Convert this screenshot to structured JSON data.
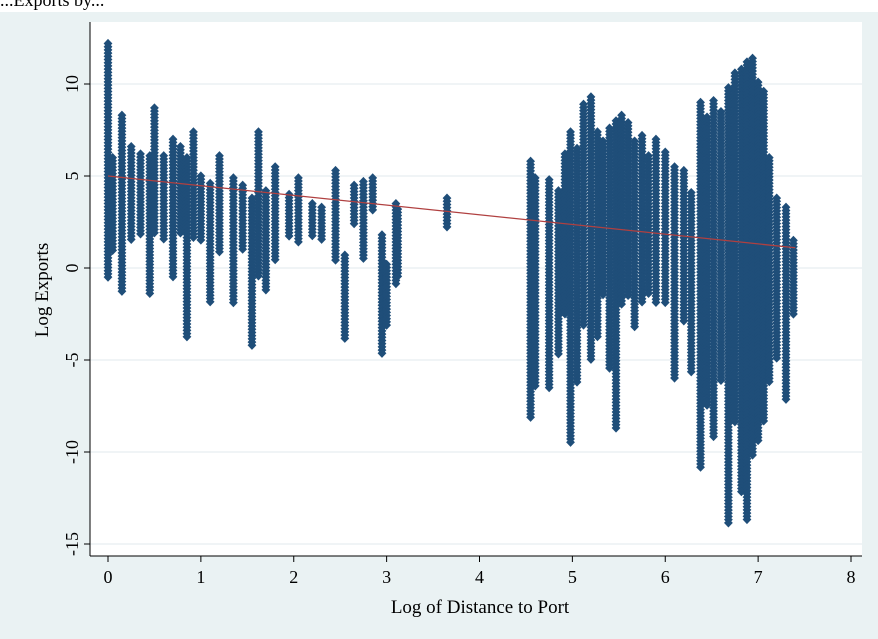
{
  "caption": "...Exports by...",
  "chart_data": {
    "type": "scatter",
    "xlabel": "Log of Distance to Port",
    "ylabel": "Log Exports",
    "xlim": [
      -0.1,
      8.2
    ],
    "ylim": [
      -15.5,
      12.6
    ],
    "x_ticks": [
      0,
      1,
      2,
      3,
      4,
      5,
      6,
      7,
      8
    ],
    "y_ticks": [
      -15,
      -10,
      -5,
      0,
      5,
      10
    ],
    "grid": "horizontal",
    "marker": "diamond",
    "colors": {
      "points": "#1f4e79",
      "fit_line": "#b04040",
      "plot_bg": "#ffffff",
      "frame_bg": "#eaf2f3",
      "grid": "#e8eef0"
    },
    "fit_line": {
      "x": [
        0,
        7.4
      ],
      "y": [
        5.0,
        1.1
      ]
    },
    "clusters": [
      {
        "x": 0.0,
        "y": [
          -0.5,
          12.2
        ]
      },
      {
        "x": 0.05,
        "y": [
          0.8,
          6.0
        ]
      },
      {
        "x": 0.15,
        "y": [
          -1.4,
          8.3
        ]
      },
      {
        "x": 0.25,
        "y": [
          1.5,
          6.6
        ]
      },
      {
        "x": 0.35,
        "y": [
          1.8,
          6.2
        ]
      },
      {
        "x": 0.45,
        "y": [
          -1.5,
          6.1
        ]
      },
      {
        "x": 0.5,
        "y": [
          1.8,
          8.7
        ]
      },
      {
        "x": 0.6,
        "y": [
          1.5,
          6.1
        ]
      },
      {
        "x": 0.7,
        "y": [
          -0.5,
          7.0
        ]
      },
      {
        "x": 0.78,
        "y": [
          1.8,
          6.6
        ]
      },
      {
        "x": 0.85,
        "y": [
          -3.9,
          6.0
        ]
      },
      {
        "x": 0.92,
        "y": [
          1.6,
          7.4
        ]
      },
      {
        "x": 1.0,
        "y": [
          1.5,
          5.0
        ]
      },
      {
        "x": 1.1,
        "y": [
          -1.9,
          4.6
        ]
      },
      {
        "x": 1.2,
        "y": [
          0.8,
          6.1
        ]
      },
      {
        "x": 1.35,
        "y": [
          -1.9,
          4.9
        ]
      },
      {
        "x": 1.45,
        "y": [
          1.0,
          4.5
        ]
      },
      {
        "x": 1.55,
        "y": [
          -4.3,
          3.8
        ]
      },
      {
        "x": 1.62,
        "y": [
          -0.5,
          7.4
        ]
      },
      {
        "x": 1.7,
        "y": [
          -1.2,
          4.2
        ]
      },
      {
        "x": 1.8,
        "y": [
          0.3,
          5.5
        ]
      },
      {
        "x": 1.95,
        "y": [
          1.7,
          4.0
        ]
      },
      {
        "x": 2.05,
        "y": [
          1.3,
          4.9
        ]
      },
      {
        "x": 2.2,
        "y": [
          1.7,
          3.5
        ]
      },
      {
        "x": 2.3,
        "y": [
          1.5,
          3.3
        ]
      },
      {
        "x": 2.45,
        "y": [
          0.3,
          5.3
        ]
      },
      {
        "x": 2.55,
        "y": [
          -3.9,
          0.7
        ]
      },
      {
        "x": 2.65,
        "y": [
          2.3,
          4.5
        ]
      },
      {
        "x": 2.75,
        "y": [
          0.5,
          4.7
        ]
      },
      {
        "x": 2.85,
        "y": [
          3.0,
          4.9
        ]
      },
      {
        "x": 2.95,
        "y": [
          -4.7,
          1.8
        ]
      },
      {
        "x": 3.0,
        "y": [
          -3.2,
          0.2
        ]
      },
      {
        "x": 3.1,
        "y": [
          -1.0,
          3.5
        ]
      },
      {
        "x": 3.12,
        "y": [
          -0.5,
          3.2
        ]
      },
      {
        "x": 3.65,
        "y": [
          2.2,
          3.8
        ]
      },
      {
        "x": 4.55,
        "y": [
          -8.2,
          5.8
        ]
      },
      {
        "x": 4.6,
        "y": [
          -6.4,
          4.9
        ]
      },
      {
        "x": 4.75,
        "y": [
          -6.6,
          4.8
        ]
      },
      {
        "x": 4.85,
        "y": [
          -4.7,
          4.2
        ]
      },
      {
        "x": 4.92,
        "y": [
          -2.5,
          6.2
        ]
      },
      {
        "x": 4.98,
        "y": [
          -9.6,
          7.4
        ]
      },
      {
        "x": 5.05,
        "y": [
          -6.3,
          6.5
        ]
      },
      {
        "x": 5.12,
        "y": [
          -3.1,
          8.9
        ]
      },
      {
        "x": 5.2,
        "y": [
          -5.0,
          9.3
        ]
      },
      {
        "x": 5.27,
        "y": [
          -3.8,
          7.4
        ]
      },
      {
        "x": 5.33,
        "y": [
          -1.5,
          6.9
        ]
      },
      {
        "x": 5.4,
        "y": [
          -5.5,
          7.6
        ]
      },
      {
        "x": 5.47,
        "y": [
          -8.7,
          8.0
        ]
      },
      {
        "x": 5.53,
        "y": [
          -2.0,
          8.3
        ]
      },
      {
        "x": 5.6,
        "y": [
          -1.5,
          7.9
        ]
      },
      {
        "x": 5.67,
        "y": [
          -3.2,
          6.9
        ]
      },
      {
        "x": 5.75,
        "y": [
          -1.9,
          7.2
        ]
      },
      {
        "x": 5.82,
        "y": [
          -1.5,
          6.1
        ]
      },
      {
        "x": 5.9,
        "y": [
          -2.0,
          7.0
        ]
      },
      {
        "x": 6.0,
        "y": [
          -2.0,
          6.3
        ]
      },
      {
        "x": 6.1,
        "y": [
          -6.1,
          5.5
        ]
      },
      {
        "x": 6.2,
        "y": [
          -3.0,
          5.3
        ]
      },
      {
        "x": 6.28,
        "y": [
          -5.8,
          4.1
        ]
      },
      {
        "x": 6.38,
        "y": [
          -10.9,
          9.0
        ]
      },
      {
        "x": 6.45,
        "y": [
          -7.5,
          8.2
        ]
      },
      {
        "x": 6.52,
        "y": [
          -9.2,
          9.1
        ]
      },
      {
        "x": 6.6,
        "y": [
          -6.2,
          8.5
        ]
      },
      {
        "x": 6.68,
        "y": [
          -14.0,
          9.8
        ]
      },
      {
        "x": 6.75,
        "y": [
          -8.5,
          10.6
        ]
      },
      {
        "x": 6.82,
        "y": [
          -12.2,
          10.8
        ]
      },
      {
        "x": 6.88,
        "y": [
          -13.7,
          11.2
        ]
      },
      {
        "x": 6.94,
        "y": [
          -10.2,
          11.4
        ]
      },
      {
        "x": 7.0,
        "y": [
          -9.5,
          10.1
        ]
      },
      {
        "x": 7.06,
        "y": [
          -8.4,
          9.6
        ]
      },
      {
        "x": 7.12,
        "y": [
          -6.2,
          6.0
        ]
      },
      {
        "x": 7.2,
        "y": [
          -5.0,
          3.8
        ]
      },
      {
        "x": 7.3,
        "y": [
          -7.2,
          3.3
        ]
      },
      {
        "x": 7.38,
        "y": [
          -2.5,
          1.5
        ]
      }
    ]
  }
}
